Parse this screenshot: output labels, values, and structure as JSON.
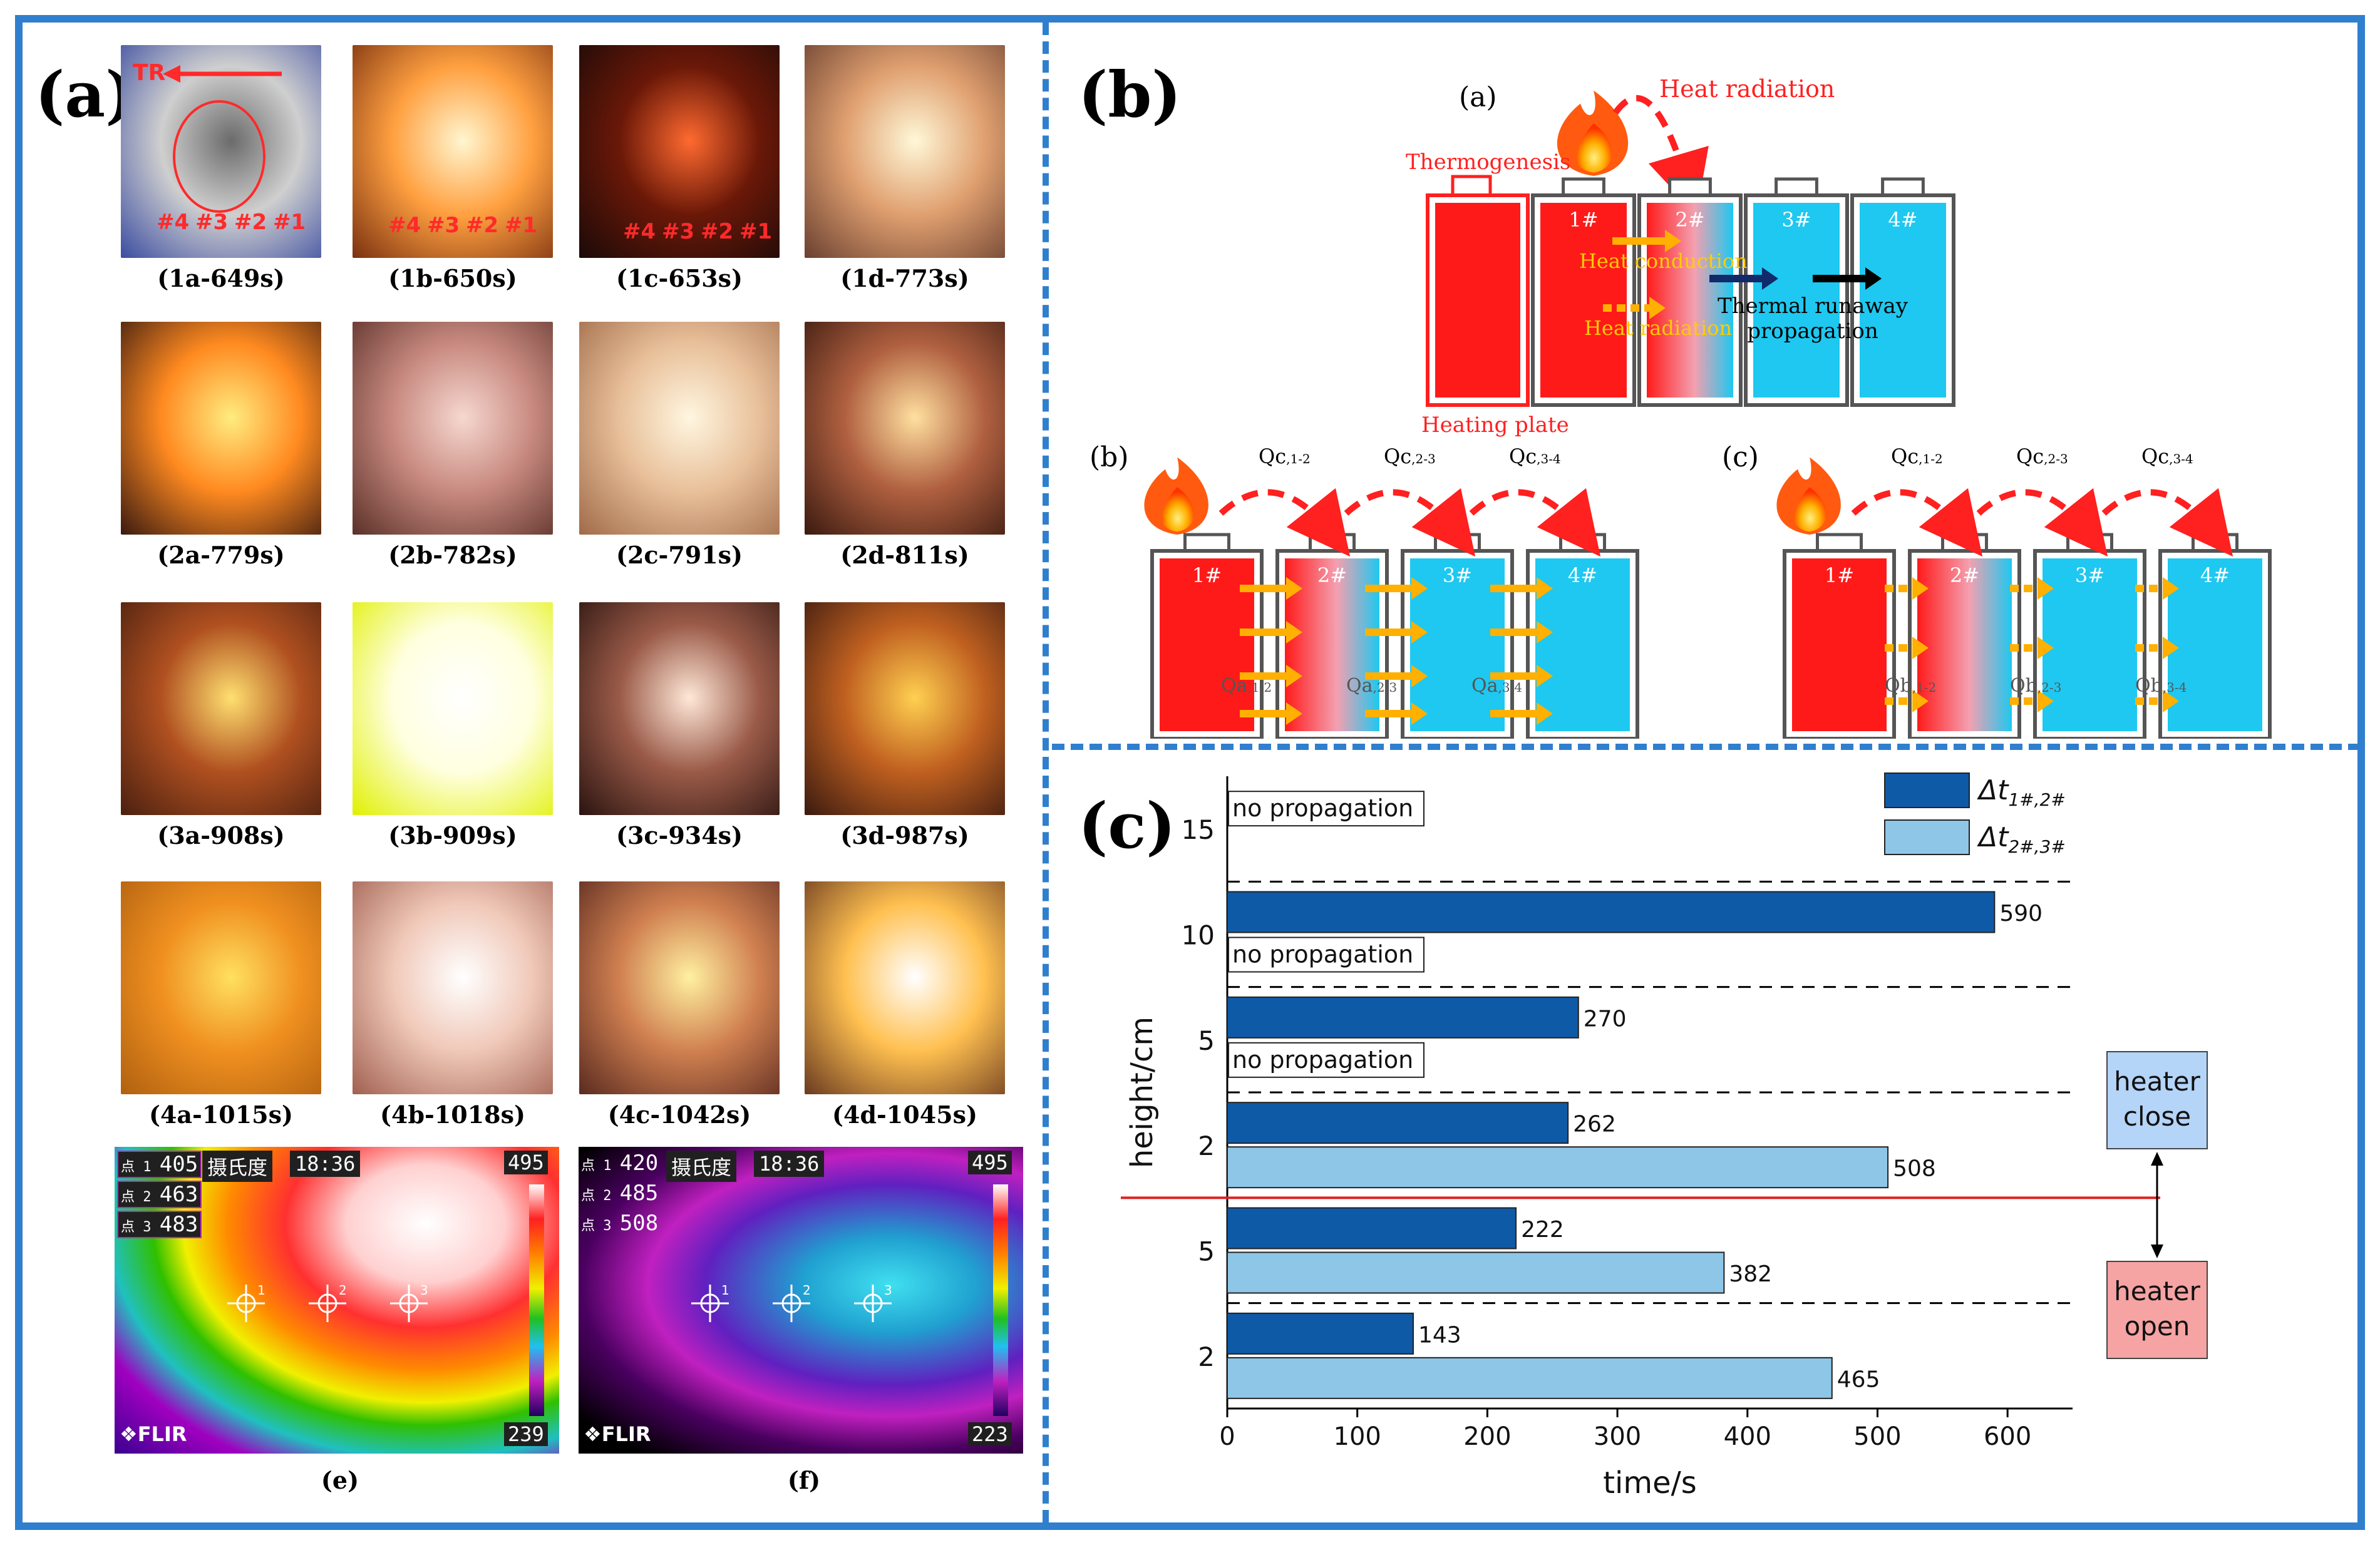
{
  "panels": {
    "a": "(a)",
    "b": "(b)",
    "c": "(c)"
  },
  "photos": [
    {
      "caption": "(1a-649s)",
      "grad": [
        "#6b6b6b",
        "#cfcfcf",
        "#3b4ca0"
      ]
    },
    {
      "caption": "(1b-650s)",
      "grad": [
        "#fff6d0",
        "#ffa040",
        "#7a3010"
      ]
    },
    {
      "caption": "(1c-653s)",
      "grad": [
        "#ff6a30",
        "#6a1808",
        "#1a0a08"
      ]
    },
    {
      "caption": "(1d-773s)",
      "grad": [
        "#fff8d8",
        "#e0a070",
        "#6a4030"
      ]
    },
    {
      "caption": "(2a-779s)",
      "grad": [
        "#ffec80",
        "#ff8a20",
        "#3a1a10"
      ]
    },
    {
      "caption": "(2b-782s)",
      "grad": [
        "#f6d8d0",
        "#c88a80",
        "#5a3028"
      ]
    },
    {
      "caption": "(2c-791s)",
      "grad": [
        "#fff6e0",
        "#e8c09a",
        "#a06a48"
      ]
    },
    {
      "caption": "(2d-811s)",
      "grad": [
        "#ffe0a0",
        "#b06040",
        "#3a1a10"
      ]
    },
    {
      "caption": "(3a-908s)",
      "grad": [
        "#ffe070",
        "#b05020",
        "#4a2010"
      ]
    },
    {
      "caption": "(3b-909s)",
      "grad": [
        "#ffffff",
        "#ffffe0",
        "#e0f000"
      ]
    },
    {
      "caption": "(3c-934s)",
      "grad": [
        "#ffe8d8",
        "#9a5a48",
        "#2a1410"
      ]
    },
    {
      "caption": "(3d-987s)",
      "grad": [
        "#ffd050",
        "#c06020",
        "#3a1a10"
      ]
    },
    {
      "caption": "(4a-1015s)",
      "grad": [
        "#ffe060",
        "#f09020",
        "#b06010"
      ]
    },
    {
      "caption": "(4b-1018s)",
      "grad": [
        "#ffffff",
        "#f0c8b8",
        "#a06050"
      ]
    },
    {
      "caption": "(4c-1042s)",
      "grad": [
        "#fff0a0",
        "#d08050",
        "#5a2a20"
      ]
    },
    {
      "caption": "(4d-1045s)",
      "grad": [
        "#ffffff",
        "#ffc050",
        "#6a3a20"
      ]
    }
  ],
  "photo1_overlays": {
    "tr": "TR",
    "cells": [
      "#4",
      "#3",
      "#2",
      "#1"
    ]
  },
  "thermal": [
    {
      "caption": "(e)",
      "unit": "摄氏度",
      "time": "18:36",
      "max": "495",
      "min": "239",
      "points": [
        {
          "n": "点 1",
          "v": "405"
        },
        {
          "n": "点 2",
          "v": "463"
        },
        {
          "n": "点 3",
          "v": "483"
        }
      ],
      "brand": "FLIR"
    },
    {
      "caption": "(f)",
      "unit": "摄氏度",
      "time": "18:36",
      "max": "495",
      "min": "223",
      "points": [
        {
          "n": "点 1",
          "v": "420"
        },
        {
          "n": "点 2",
          "v": "485"
        },
        {
          "n": "点 3",
          "v": "508"
        }
      ],
      "brand": "FLIR"
    }
  ],
  "diagram": {
    "sub_a": "(a)",
    "sub_b": "(b)",
    "sub_c": "(c)",
    "heat_radiation": "Heat radiation",
    "thermogenesis": "Thermogenesis",
    "heating_plate": "Heating plate",
    "heat_conduction": "Heat conduction",
    "heat_radiation2": "Heat radiation",
    "thermal_runaway_1": "Thermal runaway",
    "thermal_runaway_2": "propagation",
    "cells": [
      "1#",
      "2#",
      "3#",
      "4#"
    ],
    "qc_prefix": "Qc",
    "qc_subs": [
      ",1-2",
      ",2-3",
      ",3-4"
    ],
    "qa_prefix": "Qa",
    "qa_subs": [
      ",1-2",
      ",2-3",
      ",3-4"
    ],
    "qb_prefix": "Qb",
    "qb_subs": [
      ",1-2",
      ",2-3",
      ",3-4"
    ]
  },
  "chart_data": {
    "type": "bar",
    "orientation": "horizontal",
    "xlabel": "time/s",
    "ylabel": "height/cm",
    "xlim": [
      0,
      650
    ],
    "xticks": [
      0,
      100,
      200,
      300,
      400,
      500,
      600
    ],
    "colors": {
      "dt12": "#0f5aa6",
      "dt23": "#8ec6e8"
    },
    "legend": {
      "placement": "top-right",
      "entries": [
        {
          "key": "dt12",
          "main": "Δt",
          "sub": "1#,2#"
        },
        {
          "key": "dt23",
          "main": "Δt",
          "sub": "2#,3#"
        }
      ]
    },
    "no_propagation_label": "no propagation",
    "groups": [
      {
        "height": "15",
        "condition": "heater close",
        "dt12": null,
        "dt23": null
      },
      {
        "height": "10",
        "condition": "heater close",
        "dt12": 590,
        "dt23": null
      },
      {
        "height": "5",
        "condition": "heater close",
        "dt12": 270,
        "dt23": null
      },
      {
        "height": "2",
        "condition": "heater close",
        "dt12": 262,
        "dt23": 508
      },
      {
        "height": "5",
        "condition": "heater open",
        "dt12": 222,
        "dt23": 382
      },
      {
        "height": "2",
        "condition": "heater open",
        "dt12": 143,
        "dt23": 465
      }
    ],
    "annotations": {
      "heater_close": [
        "heater",
        "close"
      ],
      "heater_open": [
        "heater",
        "open"
      ],
      "close_color": "#b4d4f8",
      "open_color": "#f5a3a3"
    }
  }
}
